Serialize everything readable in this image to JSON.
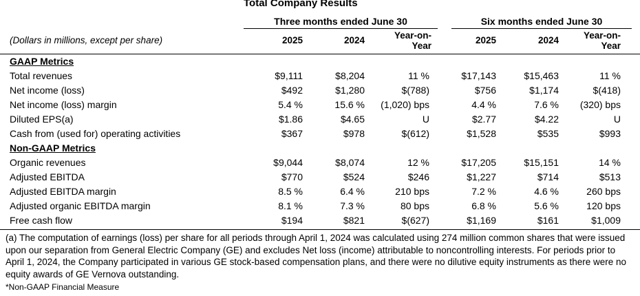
{
  "title": "Total Company Results",
  "periods": {
    "three_months": "Three months ended June 30",
    "six_months": "Six months ended June 30"
  },
  "units_note": "(Dollars in millions, except per share)",
  "columns": {
    "y2025": "2025",
    "y2024": "2024",
    "yoy_line1": "Year-on-",
    "yoy_line2": "Year"
  },
  "sections": [
    {
      "title": "GAAP Metrics",
      "rows": [
        {
          "label": "Total revenues",
          "q_2025": "$9,111",
          "q_2024": "$8,204",
          "q_yoy": "11 %",
          "h_2025": "$17,143",
          "h_2024": "$15,463",
          "h_yoy": "11 %"
        },
        {
          "label": "Net income (loss)",
          "q_2025": "$492",
          "q_2024": "$1,280",
          "q_yoy": "$(788)",
          "h_2025": "$756",
          "h_2024": "$1,174",
          "h_yoy": "$(418)"
        },
        {
          "label": "Net income (loss) margin",
          "q_2025": "5.4 %",
          "q_2024": "15.6 %",
          "q_yoy": "(1,020) bps",
          "h_2025": "4.4 %",
          "h_2024": "7.6 %",
          "h_yoy": "(320) bps"
        },
        {
          "label": "Diluted EPS(a)",
          "q_2025": "$1.86",
          "q_2024": "$4.65",
          "q_yoy": "U",
          "h_2025": "$2.77",
          "h_2024": "$4.22",
          "h_yoy": "U"
        },
        {
          "label": "Cash from (used for) operating activities",
          "q_2025": "$367",
          "q_2024": "$978",
          "q_yoy": "$(612)",
          "h_2025": "$1,528",
          "h_2024": "$535",
          "h_yoy": "$993"
        }
      ]
    },
    {
      "title": "Non-GAAP Metrics",
      "rows": [
        {
          "label": "Organic revenues",
          "q_2025": "$9,044",
          "q_2024": "$8,074",
          "q_yoy": "12 %",
          "h_2025": "$17,205",
          "h_2024": "$15,151",
          "h_yoy": "14 %"
        },
        {
          "label": "Adjusted EBITDA",
          "q_2025": "$770",
          "q_2024": "$524",
          "q_yoy": "$246",
          "h_2025": "$1,227",
          "h_2024": "$714",
          "h_yoy": "$513"
        },
        {
          "label": "Adjusted EBITDA margin",
          "q_2025": "8.5 %",
          "q_2024": "6.4 %",
          "q_yoy": "210 bps",
          "h_2025": "7.2 %",
          "h_2024": "4.6 %",
          "h_yoy": "260 bps"
        },
        {
          "label": "Adjusted organic EBITDA margin",
          "q_2025": "8.1 %",
          "q_2024": "7.3 %",
          "q_yoy": "80 bps",
          "h_2025": "6.8 %",
          "h_2024": "5.6 %",
          "h_yoy": "120 bps"
        },
        {
          "label": "Free cash flow",
          "q_2025": "$194",
          "q_2024": "$821",
          "q_yoy": "$(627)",
          "h_2025": "$1,169",
          "h_2024": "$161",
          "h_yoy": "$1,009"
        }
      ]
    }
  ],
  "footnote": "(a) The computation of earnings (loss) per share for all periods through April 1, 2024 was calculated using 274 million common shares that were issued upon our separation from General Electric Company (GE) and excludes Net loss (income) attributable to noncontrolling interests. For periods prior to April 1, 2024, the Company participated in various GE stock-based compensation plans, and there were no dilutive equity instruments as there were no equity awards of GE Vernova outstanding.",
  "non_gaap_note": "*Non-GAAP Financial Measure"
}
